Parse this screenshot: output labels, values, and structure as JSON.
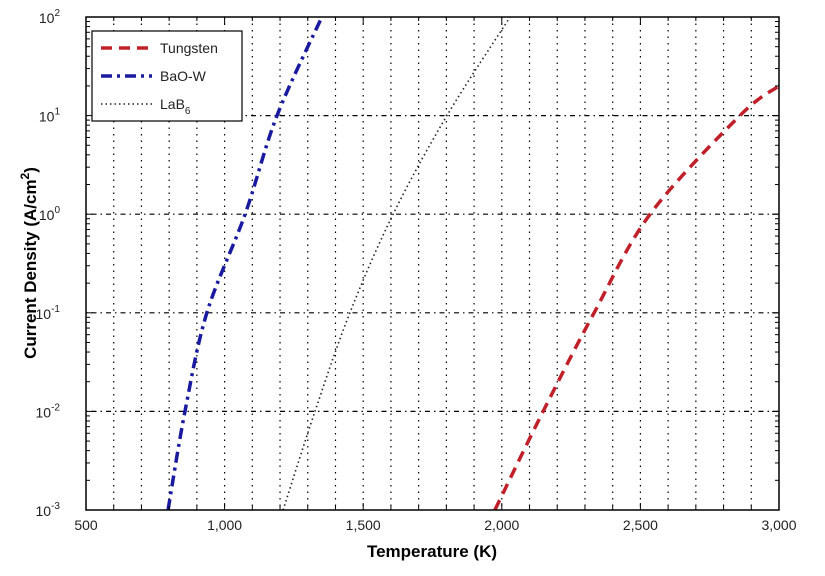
{
  "chart_data": {
    "type": "line",
    "title": "",
    "xlabel": "Temperature (K)",
    "ylabel": "Current Density (A/cm",
    "ylabel_sup": "2",
    "ylabel_end": ")",
    "xlim": [
      500,
      3000
    ],
    "ylim": [
      0.001,
      100
    ],
    "yscale": "log",
    "grid": true,
    "x_ticks": [
      500,
      1000,
      1500,
      2000,
      2500,
      3000
    ],
    "x_tick_labels": [
      "500",
      "1,000",
      "1,500",
      "2,000",
      "2,500",
      "3,000"
    ],
    "y_ticks": [
      0.001,
      0.01,
      0.1,
      1,
      10,
      100
    ],
    "y_tick_exponents": [
      "-3",
      "-2",
      "-1",
      "0",
      "1",
      "2"
    ],
    "y_tick_base": "10",
    "legend_position": "top-left",
    "series": [
      {
        "name": "Tungsten",
        "color": "#c0202a",
        "style": "dashed",
        "x": [
          1975,
          2149,
          2333,
          2535,
          2859,
          3000
        ],
        "y": [
          0.001,
          0.01,
          0.1,
          1,
          10,
          20
        ]
      },
      {
        "name": "BaO-W",
        "color": "#1a1aa0",
        "style": "dashdot",
        "x": [
          796,
          857,
          936,
          1074,
          1189,
          1351
        ],
        "y": [
          0.001,
          0.01,
          0.1,
          1,
          10,
          100
        ]
      },
      {
        "name": "LaB",
        "name_sub": "6",
        "color": "#222222",
        "style": "dotted",
        "x": [
          1211,
          1326,
          1452,
          1608,
          1802,
          2030
        ],
        "y": [
          0.001,
          0.01,
          0.1,
          1,
          10,
          100
        ]
      }
    ]
  }
}
